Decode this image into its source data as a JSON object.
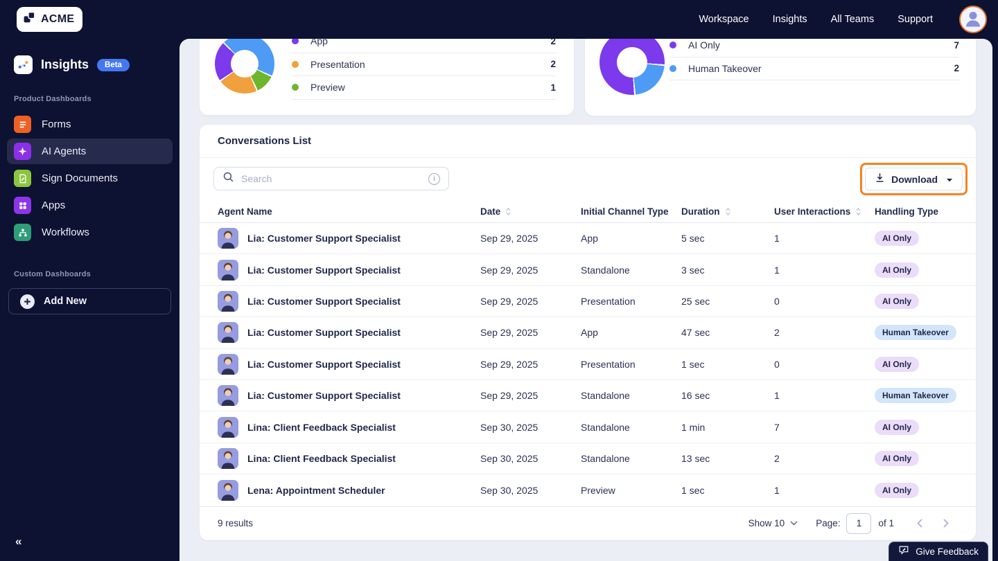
{
  "header": {
    "logo_text": "ACME",
    "nav": [
      "Workspace",
      "Insights",
      "All Teams",
      "Support"
    ]
  },
  "sidebar": {
    "title": "Insights",
    "beta": "Beta",
    "section_product": "Product Dashboards",
    "section_custom": "Custom Dashboards",
    "items": [
      {
        "label": "Forms",
        "icon": "forms-icon",
        "color": "#EE6123",
        "active": false
      },
      {
        "label": "AI Agents",
        "icon": "ai-agents-icon",
        "color": "#8B2FE8",
        "active": true
      },
      {
        "label": "Sign Documents",
        "icon": "sign-documents-icon",
        "color": "#8CC63E",
        "active": false
      },
      {
        "label": "Apps",
        "icon": "apps-icon",
        "color": "#8C35E8",
        "active": false
      },
      {
        "label": "Workflows",
        "icon": "workflows-icon",
        "color": "#2F9E77",
        "active": false
      }
    ],
    "add_new": "Add New",
    "collapse": "«"
  },
  "top_cards": {
    "channel_card": {
      "legend": [
        {
          "label": "App",
          "value": "2",
          "color": "#7C3AEC"
        },
        {
          "label": "Presentation",
          "value": "2",
          "color": "#F0A03C"
        },
        {
          "label": "Preview",
          "value": "1",
          "color": "#6FB62C"
        }
      ],
      "donut": {
        "from": 315,
        "segments": [
          {
            "color": "#4D9BF5",
            "sweep": 160
          },
          {
            "color": "#6FB62C",
            "sweep": 40
          },
          {
            "color": "#F0A03C",
            "sweep": 80
          },
          {
            "color": "#7C3AEC",
            "sweep": 80
          }
        ]
      }
    },
    "handling_card": {
      "legend": [
        {
          "label": "AI Only",
          "value": "7",
          "color": "#7C3AEC"
        },
        {
          "label": "Human Takeover",
          "value": "2",
          "color": "#4D9BF5"
        }
      ],
      "donut": {
        "from": 175,
        "segments": [
          {
            "color": "#7C3AEC",
            "sweep": 280
          },
          {
            "color": "#4D9BF5",
            "sweep": 80
          }
        ]
      }
    }
  },
  "chart_data": [
    {
      "type": "pie",
      "subtype": "donut",
      "series": [
        {
          "name": "App",
          "value": 2,
          "color": "#7C3AEC"
        },
        {
          "name": "Presentation",
          "value": 2,
          "color": "#F0A03C"
        },
        {
          "name": "Preview",
          "value": 1,
          "color": "#6FB62C"
        }
      ],
      "unlabeled_segment": {
        "color": "#4D9BF5",
        "approx_value": 4
      },
      "legend_position": "right"
    },
    {
      "type": "pie",
      "subtype": "donut",
      "series": [
        {
          "name": "AI Only",
          "value": 7,
          "color": "#7C3AEC"
        },
        {
          "name": "Human Takeover",
          "value": 2,
          "color": "#4D9BF5"
        }
      ],
      "legend_position": "right"
    }
  ],
  "conversations": {
    "title": "Conversations List",
    "search_placeholder": "Search",
    "download_label": "Download",
    "columns": [
      {
        "label": "Agent Name",
        "sortable": false
      },
      {
        "label": "Date",
        "sortable": true
      },
      {
        "label": "Initial Channel Type",
        "sortable": false
      },
      {
        "label": "Duration",
        "sortable": true
      },
      {
        "label": "User Interactions",
        "sortable": true
      },
      {
        "label": "Handling Type",
        "sortable": false
      }
    ],
    "rows": [
      {
        "agent": "Lia: Customer Support Specialist",
        "date": "Sep 29, 2025",
        "channel": "App",
        "duration": "5 sec",
        "interactions": "1",
        "handling": "AI Only"
      },
      {
        "agent": "Lia: Customer Support Specialist",
        "date": "Sep 29, 2025",
        "channel": "Standalone",
        "duration": "3 sec",
        "interactions": "1",
        "handling": "AI Only"
      },
      {
        "agent": "Lia: Customer Support Specialist",
        "date": "Sep 29, 2025",
        "channel": "Presentation",
        "duration": "25 sec",
        "interactions": "0",
        "handling": "AI Only"
      },
      {
        "agent": "Lia: Customer Support Specialist",
        "date": "Sep 29, 2025",
        "channel": "App",
        "duration": "47 sec",
        "interactions": "2",
        "handling": "Human Takeover"
      },
      {
        "agent": "Lia: Customer Support Specialist",
        "date": "Sep 29, 2025",
        "channel": "Presentation",
        "duration": "1 sec",
        "interactions": "0",
        "handling": "AI Only"
      },
      {
        "agent": "Lia: Customer Support Specialist",
        "date": "Sep 29, 2025",
        "channel": "Standalone",
        "duration": "16 sec",
        "interactions": "1",
        "handling": "Human Takeover"
      },
      {
        "agent": "Lina: Client Feedback Specialist",
        "date": "Sep 30, 2025",
        "channel": "Standalone",
        "duration": "1 min",
        "interactions": "7",
        "handling": "AI Only"
      },
      {
        "agent": "Lina: Client Feedback Specialist",
        "date": "Sep 30, 2025",
        "channel": "Standalone",
        "duration": "13 sec",
        "interactions": "2",
        "handling": "AI Only"
      },
      {
        "agent": "Lena: Appointment Scheduler",
        "date": "Sep 30, 2025",
        "channel": "Preview",
        "duration": "1 sec",
        "interactions": "1",
        "handling": "AI Only"
      }
    ],
    "footer": {
      "results": "9 results",
      "show": "Show 10",
      "page_label": "Page:",
      "page_value": "1",
      "of_label": "of 1"
    }
  },
  "feedback_label": "Give Feedback",
  "colors": {
    "navy": "#0D1232",
    "panel_bg": "#ECEEF6",
    "accent_purple": "#7C3AEC",
    "accent_blue": "#4D9BF5",
    "accent_orange": "#F0A03C",
    "accent_green": "#6FB62C",
    "highlight_orange": "#F5831F",
    "badge_ai_bg": "#EBDCFA",
    "badge_ht_bg": "#D3E5FA"
  }
}
